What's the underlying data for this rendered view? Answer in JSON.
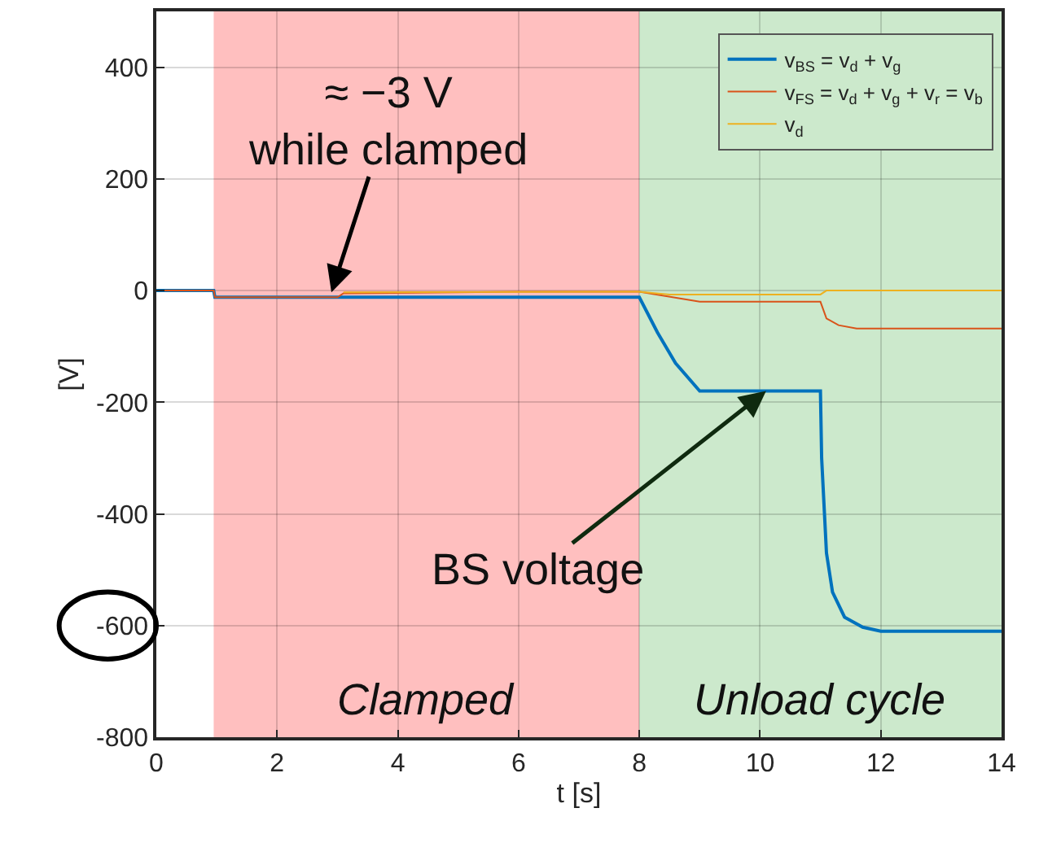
{
  "chart_data": {
    "type": "line",
    "xlabel": "t [s]",
    "ylabel": "[V]",
    "xlim": [
      0,
      14
    ],
    "ylim": [
      -800,
      500
    ],
    "xticks": [
      0,
      2,
      4,
      6,
      8,
      10,
      12,
      14
    ],
    "yticks": [
      -800,
      -600,
      -400,
      -200,
      0,
      200,
      400
    ],
    "grid": true,
    "legend": "top right",
    "line_style": "solid",
    "marker": "none",
    "bands": [
      {
        "axis": "x",
        "from": 0.95,
        "to": 8,
        "label": "Clamped",
        "color": "#ffbfbf"
      },
      {
        "axis": "x",
        "from": 8,
        "to": 14,
        "label": "Unload cycle",
        "color": "#cce9cc"
      }
    ],
    "annotations": [
      {
        "text": "≈ −3 V\nwhile clamped",
        "x": 2.9,
        "y": -3
      },
      {
        "text": "BS voltage",
        "x": 10.1,
        "y": -180
      }
    ],
    "series": [
      {
        "name": "v$_{BS}$ = v$_{d}$ + v$_{g}$",
        "color": "#0072bd",
        "x": [
          0,
          0.95,
          0.97,
          8,
          8.3,
          8.6,
          9,
          11,
          11.02,
          11.1,
          11.2,
          11.4,
          11.7,
          12,
          14
        ],
        "values": [
          0,
          0,
          -12,
          -12,
          -75,
          -130,
          -180,
          -180,
          -300,
          -470,
          -540,
          -585,
          -603,
          -610,
          -610
        ]
      },
      {
        "name": "v$_{FS}$ = v$_{d}$ + v$_{g}$ + v$_{r}$ = v$_{b}$",
        "color": "#d95319",
        "x": [
          0,
          0.95,
          0.97,
          3,
          3.1,
          6,
          8,
          9,
          11,
          11.1,
          11.3,
          11.6,
          14
        ],
        "values": [
          0,
          0,
          -12,
          -12,
          -5,
          -2,
          -2,
          -20,
          -20,
          -50,
          -62,
          -68,
          -68
        ]
      },
      {
        "name": "v$_{d}$",
        "color": "#edb120",
        "x": [
          3.1,
          8,
          8.5,
          11,
          11.1,
          14
        ],
        "values": [
          -3,
          -2,
          -7,
          -7,
          0,
          0
        ]
      }
    ]
  }
}
